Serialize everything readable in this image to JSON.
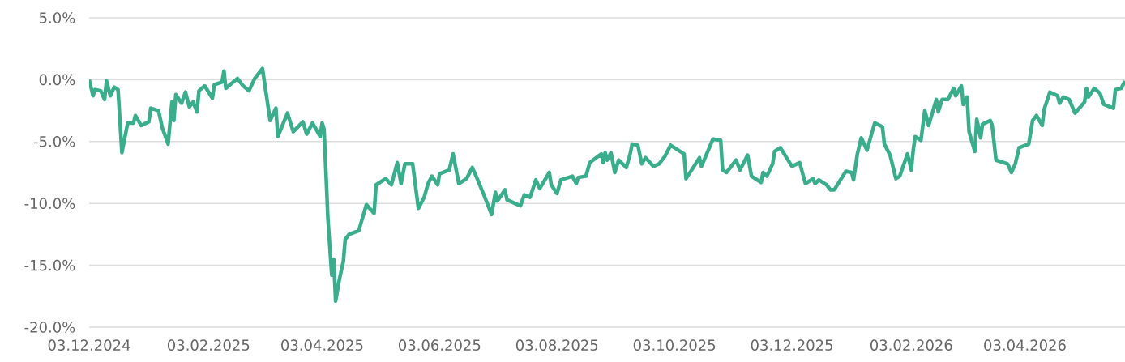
{
  "chart_data": {
    "type": "line",
    "color": "#3aae8c",
    "grid": "y",
    "xlim": [
      "2024-12-03",
      "2026-05-25"
    ],
    "xticks": [
      {
        "value": "2024-12-03",
        "label": "03.12.2024"
      },
      {
        "value": "2025-02-03",
        "label": "03.02.2025"
      },
      {
        "value": "2025-04-03",
        "label": "03.04.2025"
      },
      {
        "value": "2025-06-03",
        "label": "03.06.2025"
      },
      {
        "value": "2025-08-03",
        "label": "03.08.2025"
      },
      {
        "value": "2025-10-03",
        "label": "03.10.2025"
      },
      {
        "value": "2025-12-03",
        "label": "03.12.2025"
      },
      {
        "value": "2026-02-03",
        "label": "03.02.2026"
      },
      {
        "value": "2026-04-03",
        "label": "03.04.2026"
      }
    ],
    "ylim": [
      -20,
      5
    ],
    "yticks": [
      {
        "value": 5,
        "label": "5.0%"
      },
      {
        "value": 0,
        "label": "0.0%"
      },
      {
        "value": -5,
        "label": "-5.0%"
      },
      {
        "value": -10,
        "label": "-10.0%"
      },
      {
        "value": -15,
        "label": "-15.0%"
      },
      {
        "value": -20,
        "label": "-20.0%"
      }
    ],
    "x": [
      "2024-12-03",
      "2024-12-05",
      "2024-12-06",
      "2024-12-09",
      "2024-12-11",
      "2024-12-12",
      "2024-12-14",
      "2024-12-16",
      "2024-12-18",
      "2024-12-20",
      "2024-12-23",
      "2024-12-26",
      "2024-12-27",
      "2024-12-30",
      "2025-01-03",
      "2025-01-04",
      "2025-01-08",
      "2025-01-10",
      "2025-01-13",
      "2025-01-15",
      "2025-01-16",
      "2025-01-17",
      "2025-01-20",
      "2025-01-22",
      "2025-01-24",
      "2025-01-26",
      "2025-01-28",
      "2025-01-29",
      "2025-02-01",
      "2025-02-05",
      "2025-02-06",
      "2025-02-10",
      "2025-02-11",
      "2025-02-12",
      "2025-02-18",
      "2025-02-21",
      "2025-02-24",
      "2025-02-27",
      "2025-03-03",
      "2025-03-05",
      "2025-03-07",
      "2025-03-10",
      "2025-03-11",
      "2025-03-16",
      "2025-03-19",
      "2025-03-24",
      "2025-03-26",
      "2025-03-29",
      "2025-04-02",
      "2025-04-03",
      "2025-04-04",
      "2025-04-06",
      "2025-04-08",
      "2025-04-09",
      "2025-04-10",
      "2025-04-12",
      "2025-04-14",
      "2025-04-15",
      "2025-04-17",
      "2025-04-22",
      "2025-04-26",
      "2025-04-30",
      "2025-05-01",
      "2025-05-06",
      "2025-05-09",
      "2025-05-12",
      "2025-05-14",
      "2025-05-16",
      "2025-05-20",
      "2025-05-23",
      "2025-05-26",
      "2025-05-28",
      "2025-05-30",
      "2025-06-02",
      "2025-06-03",
      "2025-06-08",
      "2025-06-10",
      "2025-06-13",
      "2025-06-17",
      "2025-06-20",
      "2025-06-22",
      "2025-06-26",
      "2025-06-30",
      "2025-07-02",
      "2025-07-03",
      "2025-07-07",
      "2025-07-08",
      "2025-07-15",
      "2025-07-17",
      "2025-07-20",
      "2025-07-23",
      "2025-07-25",
      "2025-07-30",
      "2025-07-31",
      "2025-08-03",
      "2025-08-05",
      "2025-08-11",
      "2025-08-13",
      "2025-08-14",
      "2025-08-18",
      "2025-08-20",
      "2025-08-26",
      "2025-08-27",
      "2025-08-28",
      "2025-08-29",
      "2025-08-31",
      "2025-09-02",
      "2025-09-04",
      "2025-09-08",
      "2025-09-10",
      "2025-09-11",
      "2025-09-14",
      "2025-09-16",
      "2025-09-18",
      "2025-09-22",
      "2025-09-25",
      "2025-09-28",
      "2025-10-01",
      "2025-10-08",
      "2025-10-09",
      "2025-10-14",
      "2025-10-16",
      "2025-10-17",
      "2025-10-20",
      "2025-10-23",
      "2025-10-27",
      "2025-10-28",
      "2025-10-30",
      "2025-11-04",
      "2025-11-06",
      "2025-11-10",
      "2025-11-12",
      "2025-11-17",
      "2025-11-18",
      "2025-11-20",
      "2025-11-23",
      "2025-11-24",
      "2025-11-27",
      "2025-12-03",
      "2025-12-07",
      "2025-12-10",
      "2025-12-14",
      "2025-12-15",
      "2025-12-17",
      "2025-12-21",
      "2025-12-23",
      "2025-12-25",
      "2025-12-31",
      "2026-01-03",
      "2026-01-04",
      "2026-01-06",
      "2026-01-08",
      "2026-01-11",
      "2026-01-15",
      "2026-01-19",
      "2026-01-20",
      "2026-01-23",
      "2026-01-26",
      "2026-01-28",
      "2026-02-01",
      "2026-02-03",
      "2026-02-04",
      "2026-02-05",
      "2026-02-08",
      "2026-02-10",
      "2026-02-12",
      "2026-02-16",
      "2026-02-17",
      "2026-02-19",
      "2026-02-22",
      "2026-02-25",
      "2026-02-26",
      "2026-03-01",
      "2026-03-02",
      "2026-03-04",
      "2026-03-05",
      "2026-03-08",
      "2026-03-09",
      "2026-03-11",
      "2026-03-12",
      "2026-03-16",
      "2026-03-17",
      "2026-03-19",
      "2026-03-25",
      "2026-03-27",
      "2026-03-29",
      "2026-03-31",
      "2026-04-05",
      "2026-04-07",
      "2026-04-09",
      "2026-04-12",
      "2026-04-13",
      "2026-04-16",
      "2026-04-20",
      "2026-04-21",
      "2026-04-23",
      "2026-04-26",
      "2026-04-29",
      "2026-05-04",
      "2026-05-05",
      "2026-05-06",
      "2026-05-09",
      "2026-05-12",
      "2026-05-14",
      "2026-05-19",
      "2026-05-20",
      "2026-05-23",
      "2026-05-25"
    ],
    "values": [
      0.0,
      -1.3,
      -0.8,
      -0.9,
      -1.6,
      -0.1,
      -1.3,
      -0.6,
      -0.8,
      -5.9,
      -3.5,
      -3.5,
      -2.9,
      -3.7,
      -3.4,
      -2.3,
      -2.5,
      -3.9,
      -5.2,
      -1.8,
      -3.3,
      -1.2,
      -1.9,
      -1.0,
      -2.2,
      -1.8,
      -2.6,
      -0.9,
      -0.5,
      -1.5,
      -0.4,
      -0.2,
      0.7,
      -0.7,
      0.1,
      -0.5,
      -0.9,
      0.1,
      0.9,
      -1.2,
      -3.3,
      -2.3,
      -4.6,
      -2.7,
      -4.2,
      -3.4,
      -4.4,
      -3.5,
      -4.6,
      -3.5,
      -4.0,
      -11.2,
      -15.8,
      -14.5,
      -17.9,
      -16.1,
      -14.7,
      -12.9,
      -12.5,
      -12.2,
      -10.1,
      -10.8,
      -8.5,
      -8.0,
      -8.5,
      -6.7,
      -8.4,
      -6.8,
      -6.8,
      -10.4,
      -9.5,
      -8.4,
      -7.8,
      -8.5,
      -7.6,
      -7.3,
      -6.0,
      -8.4,
      -8.0,
      -7.1,
      -7.8,
      -9.3,
      -10.9,
      -9.1,
      -9.8,
      -8.9,
      -9.7,
      -10.2,
      -9.3,
      -9.5,
      -8.1,
      -8.8,
      -7.5,
      -8.5,
      -9.2,
      -8.1,
      -7.8,
      -8.4,
      -7.9,
      -7.8,
      -6.7,
      -6.0,
      -6.7,
      -5.9,
      -6.5,
      -5.9,
      -7.5,
      -6.5,
      -7.1,
      -6.0,
      -5.2,
      -5.3,
      -6.8,
      -6.3,
      -7.0,
      -6.8,
      -6.2,
      -5.3,
      -6.0,
      -8.0,
      -6.8,
      -6.3,
      -7.0,
      -5.9,
      -4.8,
      -4.9,
      -7.3,
      -7.5,
      -6.5,
      -7.3,
      -6.1,
      -7.8,
      -8.3,
      -7.5,
      -7.8,
      -6.8,
      -5.8,
      -5.5,
      -7.0,
      -6.7,
      -8.4,
      -8.0,
      -8.4,
      -8.1,
      -8.5,
      -8.9,
      -8.9,
      -7.4,
      -7.5,
      -8.1,
      -6.0,
      -4.7,
      -5.7,
      -3.5,
      -3.8,
      -5.2,
      -6.1,
      -8.0,
      -7.8,
      -6.0,
      -7.3,
      -5.7,
      -4.6,
      -4.9,
      -2.5,
      -3.7,
      -1.6,
      -2.6,
      -1.6,
      -1.6,
      -0.7,
      -1.3,
      -0.5,
      -2.0,
      -1.4,
      -4.2,
      -5.8,
      -3.2,
      -4.7,
      -3.6,
      -3.3,
      -3.7,
      -6.5,
      -6.8,
      -7.5,
      -6.8,
      -5.5,
      -5.2,
      -3.3,
      -2.9,
      -3.7,
      -2.4,
      -1.0,
      -1.3,
      -1.9,
      -1.4,
      -1.6,
      -2.7,
      -1.8,
      -0.7,
      -1.4,
      -0.7,
      -1.1,
      -2.0,
      -2.3,
      -0.8,
      -0.7,
      -0.1
    ]
  }
}
